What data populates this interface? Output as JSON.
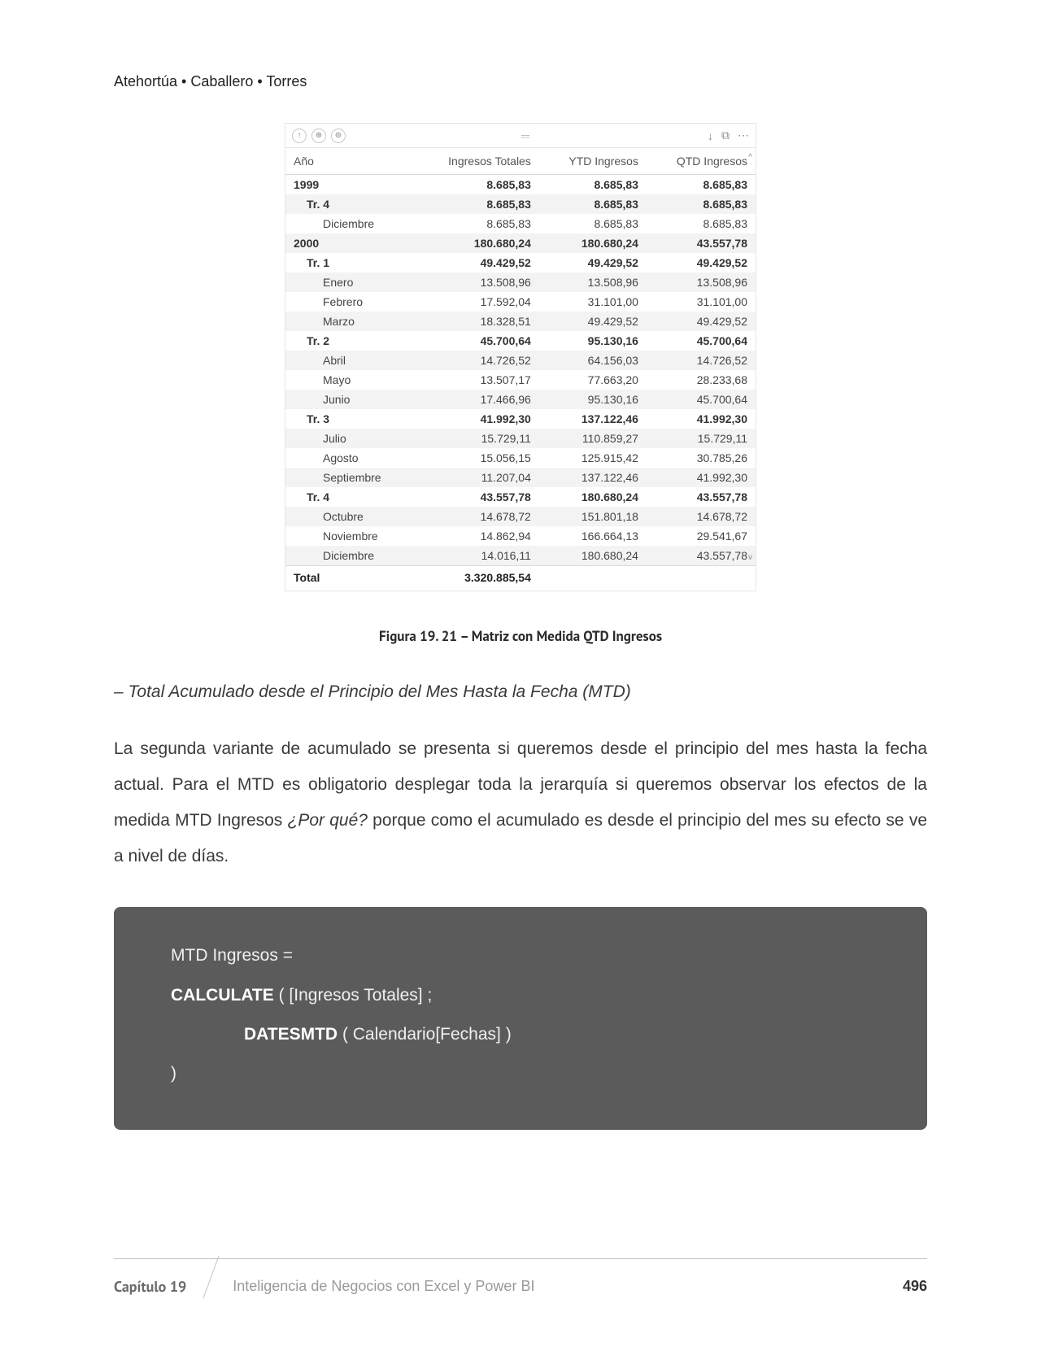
{
  "authors": "Atehortúa • Caballero • Torres",
  "matrix": {
    "toolbar": {
      "icons_left": [
        "↑",
        "⊕",
        "⊚"
      ],
      "grip": "═",
      "icons_right": [
        "↓",
        "⧉",
        "⋯"
      ]
    },
    "columns": [
      "Año",
      "Ingresos Totales",
      "YTD Ingresos",
      "QTD Ingresos"
    ],
    "header_caret": "^",
    "rows": [
      {
        "level": 1,
        "bold": true,
        "shade": false,
        "cells": [
          "1999",
          "8.685,83",
          "8.685,83",
          "8.685,83"
        ]
      },
      {
        "level": 2,
        "bold": true,
        "shade": true,
        "cells": [
          "Tr. 4",
          "8.685,83",
          "8.685,83",
          "8.685,83"
        ]
      },
      {
        "level": 3,
        "bold": false,
        "shade": false,
        "cells": [
          "Diciembre",
          "8.685,83",
          "8.685,83",
          "8.685,83"
        ]
      },
      {
        "level": 1,
        "bold": true,
        "shade": true,
        "cells": [
          "2000",
          "180.680,24",
          "180.680,24",
          "43.557,78"
        ]
      },
      {
        "level": 2,
        "bold": true,
        "shade": false,
        "cells": [
          "Tr. 1",
          "49.429,52",
          "49.429,52",
          "49.429,52"
        ]
      },
      {
        "level": 3,
        "bold": false,
        "shade": true,
        "cells": [
          "Enero",
          "13.508,96",
          "13.508,96",
          "13.508,96"
        ]
      },
      {
        "level": 3,
        "bold": false,
        "shade": false,
        "cells": [
          "Febrero",
          "17.592,04",
          "31.101,00",
          "31.101,00"
        ]
      },
      {
        "level": 3,
        "bold": false,
        "shade": true,
        "cells": [
          "Marzo",
          "18.328,51",
          "49.429,52",
          "49.429,52"
        ]
      },
      {
        "level": 2,
        "bold": true,
        "shade": false,
        "cells": [
          "Tr. 2",
          "45.700,64",
          "95.130,16",
          "45.700,64"
        ]
      },
      {
        "level": 3,
        "bold": false,
        "shade": true,
        "cells": [
          "Abril",
          "14.726,52",
          "64.156,03",
          "14.726,52"
        ]
      },
      {
        "level": 3,
        "bold": false,
        "shade": false,
        "cells": [
          "Mayo",
          "13.507,17",
          "77.663,20",
          "28.233,68"
        ]
      },
      {
        "level": 3,
        "bold": false,
        "shade": true,
        "cells": [
          "Junio",
          "17.466,96",
          "95.130,16",
          "45.700,64"
        ]
      },
      {
        "level": 2,
        "bold": true,
        "shade": false,
        "cells": [
          "Tr. 3",
          "41.992,30",
          "137.122,46",
          "41.992,30"
        ]
      },
      {
        "level": 3,
        "bold": false,
        "shade": true,
        "cells": [
          "Julio",
          "15.729,11",
          "110.859,27",
          "15.729,11"
        ]
      },
      {
        "level": 3,
        "bold": false,
        "shade": false,
        "cells": [
          "Agosto",
          "15.056,15",
          "125.915,42",
          "30.785,26"
        ]
      },
      {
        "level": 3,
        "bold": false,
        "shade": true,
        "cells": [
          "Septiembre",
          "11.207,04",
          "137.122,46",
          "41.992,30"
        ]
      },
      {
        "level": 2,
        "bold": true,
        "shade": false,
        "cells": [
          "Tr. 4",
          "43.557,78",
          "180.680,24",
          "43.557,78"
        ]
      },
      {
        "level": 3,
        "bold": false,
        "shade": true,
        "cells": [
          "Octubre",
          "14.678,72",
          "151.801,18",
          "14.678,72"
        ]
      },
      {
        "level": 3,
        "bold": false,
        "shade": false,
        "cells": [
          "Noviembre",
          "14.862,94",
          "166.664,13",
          "29.541,67"
        ]
      },
      {
        "level": 3,
        "bold": false,
        "shade": true,
        "cells": [
          "Diciembre",
          "14.016,11",
          "180.680,24",
          "43.557,78"
        ]
      }
    ],
    "total_row": [
      "Total",
      "3.320.885,54",
      "",
      ""
    ],
    "scroll_down": "v"
  },
  "figure_caption": "Figura 19. 21 – Matriz con Medida QTD Ingresos",
  "section_heading": "– Total Acumulado desde el Principio del Mes Hasta la Fecha (MTD)",
  "paragraph_parts": {
    "p1": "La segunda variante de acumulado se presenta si queremos desde el principio del mes hasta la fecha actual. Para el MTD es obligatorio desplegar toda la jerarquía si queremos observar los efectos de la medida MTD Ingresos ",
    "p2_em": "¿Por qué?",
    "p3": " porque como el acumulado es desde el principio del mes su efecto se ve a nivel de días."
  },
  "code": {
    "l1": "MTD Ingresos =",
    "l2_kw": "CALCULATE",
    "l2_rest": " ( [Ingresos Totales] ;",
    "l3_kw": "DATESMTD",
    "l3_rest": " ( Calendario[Fechas] )",
    "l4": ")"
  },
  "footer": {
    "chapter": "Capítulo 19",
    "title": "Inteligencia de Negocios con Excel y Power BI",
    "page": "496"
  }
}
